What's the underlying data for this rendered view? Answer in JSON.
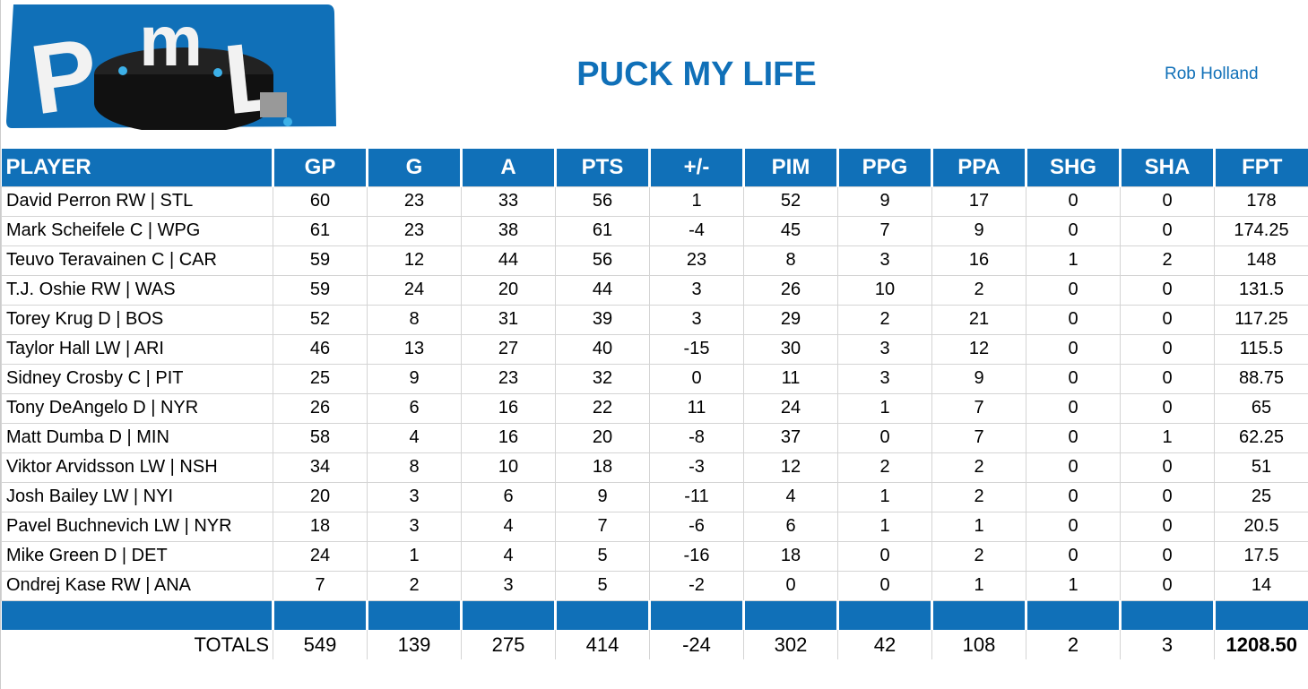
{
  "logo": {
    "text": "PML"
  },
  "title": "PUCK MY LIFE",
  "owner": "Rob Holland",
  "columns": [
    "PLAYER",
    "GP",
    "G",
    "A",
    "PTS",
    "+/-",
    "PIM",
    "PPG",
    "PPA",
    "SHG",
    "SHA",
    "FPT"
  ],
  "rows": [
    [
      "David Perron RW | STL",
      "60",
      "23",
      "33",
      "56",
      "1",
      "52",
      "9",
      "17",
      "0",
      "0",
      "178"
    ],
    [
      "Mark Scheifele C | WPG",
      "61",
      "23",
      "38",
      "61",
      "-4",
      "45",
      "7",
      "9",
      "0",
      "0",
      "174.25"
    ],
    [
      "Teuvo Teravainen C | CAR",
      "59",
      "12",
      "44",
      "56",
      "23",
      "8",
      "3",
      "16",
      "1",
      "2",
      "148"
    ],
    [
      "T.J. Oshie RW | WAS",
      "59",
      "24",
      "20",
      "44",
      "3",
      "26",
      "10",
      "2",
      "0",
      "0",
      "131.5"
    ],
    [
      "Torey Krug D | BOS",
      "52",
      "8",
      "31",
      "39",
      "3",
      "29",
      "2",
      "21",
      "0",
      "0",
      "117.25"
    ],
    [
      "Taylor Hall LW | ARI",
      "46",
      "13",
      "27",
      "40",
      "-15",
      "30",
      "3",
      "12",
      "0",
      "0",
      "115.5"
    ],
    [
      "Sidney Crosby C | PIT",
      "25",
      "9",
      "23",
      "32",
      "0",
      "11",
      "3",
      "9",
      "0",
      "0",
      "88.75"
    ],
    [
      "Tony DeAngelo D | NYR",
      "26",
      "6",
      "16",
      "22",
      "11",
      "24",
      "1",
      "7",
      "0",
      "0",
      "65"
    ],
    [
      "Matt Dumba D | MIN",
      "58",
      "4",
      "16",
      "20",
      "-8",
      "37",
      "0",
      "7",
      "0",
      "1",
      "62.25"
    ],
    [
      "Viktor Arvidsson LW | NSH",
      "34",
      "8",
      "10",
      "18",
      "-3",
      "12",
      "2",
      "2",
      "0",
      "0",
      "51"
    ],
    [
      "Josh Bailey LW | NYI",
      "20",
      "3",
      "6",
      "9",
      "-11",
      "4",
      "1",
      "2",
      "0",
      "0",
      "25"
    ],
    [
      "Pavel Buchnevich LW | NYR",
      "18",
      "3",
      "4",
      "7",
      "-6",
      "6",
      "1",
      "1",
      "0",
      "0",
      "20.5"
    ],
    [
      "Mike Green D | DET",
      "24",
      "1",
      "4",
      "5",
      "-16",
      "18",
      "0",
      "2",
      "0",
      "0",
      "17.5"
    ],
    [
      "Ondrej Kase RW | ANA",
      "7",
      "2",
      "3",
      "5",
      "-2",
      "0",
      "0",
      "1",
      "1",
      "0",
      "14"
    ]
  ],
  "totals": [
    "TOTALS",
    "549",
    "139",
    "275",
    "414",
    "-24",
    "302",
    "42",
    "108",
    "2",
    "3",
    "1208.50"
  ],
  "colors": {
    "accent": "#1070b8"
  }
}
